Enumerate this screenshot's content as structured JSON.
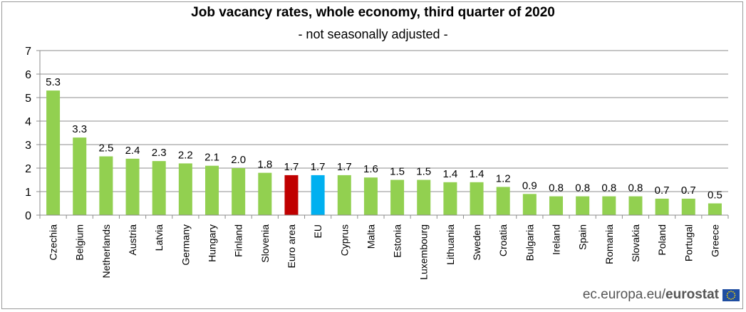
{
  "chart_data": {
    "type": "bar",
    "title": "Job vacancy rates, whole economy, third quarter of 2020",
    "subtitle": "- not seasonally adjusted -",
    "xlabel": "",
    "ylabel": "",
    "ylim": [
      0,
      7
    ],
    "yticks": [
      "0",
      "1",
      "2",
      "3",
      "4",
      "5",
      "6",
      "7"
    ],
    "grid": true,
    "categories": [
      "Czechia",
      "Belgium",
      "Netherlands",
      "Austria",
      "Latvia",
      "Germany",
      "Hungary",
      "Finland",
      "Slovenia",
      "Euro area",
      "EU",
      "Cyprus",
      "Malta",
      "Estonia",
      "Luxembourg",
      "Lithuania",
      "Sweden",
      "Croatia",
      "Bulgaria",
      "Ireland",
      "Spain",
      "Romania",
      "Slovakia",
      "Poland",
      "Portugal",
      "Greece"
    ],
    "values": [
      5.3,
      3.3,
      2.5,
      2.4,
      2.3,
      2.2,
      2.1,
      2.0,
      1.8,
      1.7,
      1.7,
      1.7,
      1.6,
      1.5,
      1.5,
      1.4,
      1.4,
      1.2,
      0.9,
      0.8,
      0.8,
      0.8,
      0.8,
      0.7,
      0.7,
      0.5
    ],
    "value_labels": [
      "5.3",
      "3.3",
      "2.5",
      "2.4",
      "2.3",
      "2.2",
      "2.1",
      "2.0",
      "1.8",
      "1.7",
      "1.7",
      "1.7",
      "1.6",
      "1.5",
      "1.5",
      "1.4",
      "1.4",
      "1.2",
      "0.9",
      "0.8",
      "0.8",
      "0.8",
      "0.8",
      "0.7",
      "0.7",
      "0.5"
    ],
    "colors": {
      "default": "#92d050",
      "Euro area": "#c00000",
      "EU": "#00b0f0"
    }
  },
  "footer": {
    "source": "ec.europa.eu/",
    "brand": "eurostat",
    "logo_icon": "eu-flag-icon"
  }
}
